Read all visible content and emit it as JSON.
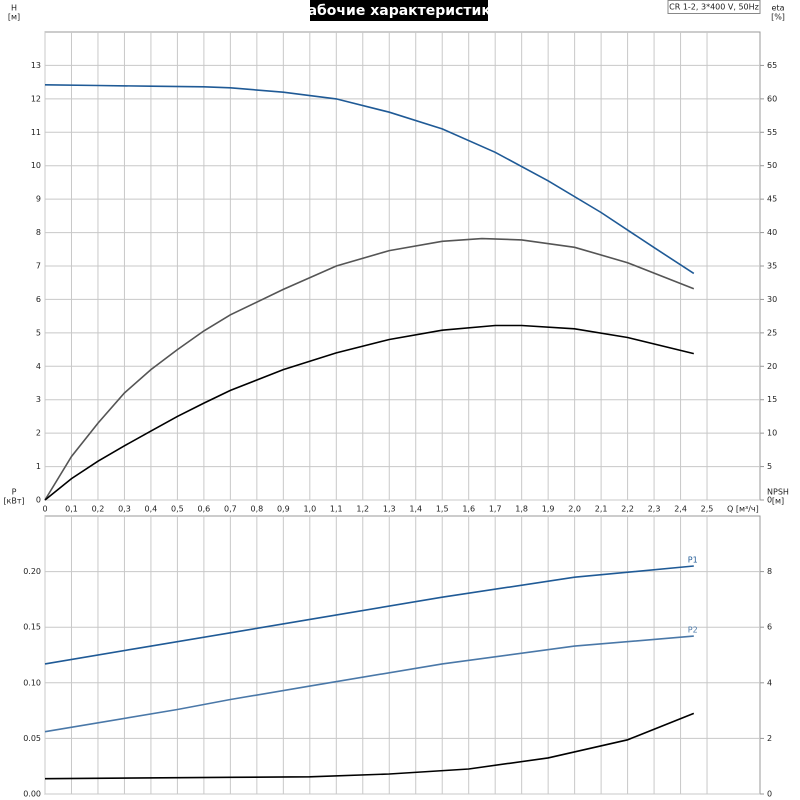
{
  "chart_data": [
    {
      "type": "line",
      "title": "Рабочие характеристики",
      "subtitle": "CR 1-2, 3*400 V, 50Hz",
      "ylabel": "H",
      "yunit": "[м]",
      "y2label": "eta",
      "y2unit": "[%]",
      "xlabel": "Q [м³/ч]",
      "xlim": [
        0,
        2.7
      ],
      "xticks": [
        0,
        {
          "value": 0.1,
          "label": "0,1"
        },
        {
          "value": 0.2,
          "label": "0,2"
        },
        {
          "value": 0.3,
          "label": "0,3"
        },
        {
          "value": 0.4,
          "label": "0,4"
        },
        {
          "value": 0.5,
          "label": "0,5"
        },
        {
          "value": 0.6,
          "label": "0,6"
        },
        {
          "value": 0.7,
          "label": "0,7"
        },
        {
          "value": 0.8,
          "label": "0,8"
        },
        {
          "value": 0.9,
          "label": "0,9"
        },
        {
          "value": 1.0,
          "label": "1,0"
        },
        {
          "value": 1.1,
          "label": "1,1"
        },
        {
          "value": 1.2,
          "label": "1,2"
        },
        {
          "value": 1.3,
          "label": "1,3"
        },
        {
          "value": 1.4,
          "label": "1,4"
        },
        {
          "value": 1.5,
          "label": "1,5"
        },
        {
          "value": 1.6,
          "label": "1,6"
        },
        {
          "value": 1.7,
          "label": "1,7"
        },
        {
          "value": 1.8,
          "label": "1,8"
        },
        {
          "value": 1.9,
          "label": "1,9"
        },
        {
          "value": 2.0,
          "label": "2,0"
        },
        {
          "value": 2.1,
          "label": "2,1"
        },
        {
          "value": 2.2,
          "label": "2,2"
        },
        {
          "value": 2.3,
          "label": "2,3"
        },
        {
          "value": 2.4,
          "label": "2,4"
        },
        {
          "value": 2.5,
          "label": "2,5"
        }
      ],
      "ylim": [
        0,
        14
      ],
      "yticks": [
        0,
        1,
        2,
        3,
        4,
        5,
        6,
        7,
        8,
        9,
        10,
        11,
        12,
        13
      ],
      "y2lim": [
        0,
        70
      ],
      "y2ticks": [
        0,
        5,
        10,
        15,
        20,
        25,
        30,
        35,
        40,
        45,
        50,
        55,
        60,
        65
      ],
      "grid": true,
      "series": [
        {
          "color": "#1f5a96",
          "x": [
            0,
            0.2,
            0.4,
            0.6,
            0.7,
            0.9,
            1.1,
            1.3,
            1.5,
            1.7,
            1.9,
            2.1,
            2.3,
            2.45
          ],
          "values": [
            12.42,
            12.4,
            12.38,
            12.36,
            12.33,
            12.2,
            12.0,
            11.6,
            11.1,
            10.4,
            9.55,
            8.6,
            7.55,
            6.78
          ]
        },
        {
          "color": "#555555",
          "axis": "y2",
          "x": [
            0,
            0.1,
            0.2,
            0.3,
            0.4,
            0.5,
            0.6,
            0.7,
            0.9,
            1.1,
            1.3,
            1.5,
            1.65,
            1.8,
            2.0,
            2.2,
            2.45
          ],
          "values": [
            0,
            6.5,
            11.5,
            16,
            19.5,
            22.5,
            25.3,
            27.7,
            31.5,
            35,
            37.3,
            38.7,
            39.1,
            38.9,
            37.8,
            35.5,
            31.6
          ]
        },
        {
          "color": "#000000",
          "axis": "y2",
          "x": [
            0,
            0.1,
            0.2,
            0.3,
            0.4,
            0.5,
            0.6,
            0.7,
            0.9,
            1.1,
            1.3,
            1.5,
            1.7,
            1.8,
            2.0,
            2.2,
            2.45
          ],
          "values": [
            0,
            3.2,
            5.8,
            8.1,
            10.3,
            12.5,
            14.5,
            16.4,
            19.5,
            22,
            24,
            25.4,
            26.1,
            26.1,
            25.6,
            24.3,
            21.9
          ]
        }
      ]
    },
    {
      "type": "line",
      "ylabel": "P",
      "yunit": "[кВт]",
      "y2label": "NPSH",
      "y2unit": "[м]",
      "xlim": [
        0,
        2.7
      ],
      "xticks": [
        0,
        0.1,
        0.2,
        0.3,
        0.4,
        0.5,
        0.6,
        0.7,
        0.8,
        0.9,
        1.0,
        1.1,
        1.2,
        1.3,
        1.4,
        1.5,
        1.6,
        1.7,
        1.8,
        1.9,
        2.0,
        2.1,
        2.2,
        2.3,
        2.4,
        2.5
      ],
      "ylim": [
        0,
        0.25
      ],
      "yticks": [
        {
          "value": 0,
          "label": "0.00"
        },
        {
          "value": 0.05,
          "label": "0.05"
        },
        {
          "value": 0.1,
          "label": "0.10"
        },
        {
          "value": 0.15,
          "label": "0.15"
        },
        {
          "value": 0.2,
          "label": "0.20"
        }
      ],
      "y2lim": [
        0,
        10
      ],
      "y2ticks": [
        0,
        2,
        4,
        6,
        8
      ],
      "grid": true,
      "series": [
        {
          "name": "P1",
          "color": "#1f5a96",
          "x": [
            0,
            0.35,
            0.7,
            1.0,
            1.5,
            2.0,
            2.45
          ],
          "values": [
            0.117,
            0.131,
            0.145,
            0.157,
            0.177,
            0.195,
            0.205
          ]
        },
        {
          "name": "P2",
          "color": "#4a78a8",
          "x": [
            0,
            0.5,
            0.7,
            1.0,
            1.5,
            2.0,
            2.45
          ],
          "values": [
            0.056,
            0.076,
            0.085,
            0.097,
            0.117,
            0.133,
            0.142
          ]
        },
        {
          "color": "#000000",
          "axis": "y2",
          "x": [
            0,
            0.7,
            1.0,
            1.3,
            1.6,
            1.9,
            2.2,
            2.45
          ],
          "values": [
            0.55,
            0.6,
            0.62,
            0.72,
            0.9,
            1.3,
            1.95,
            2.9
          ]
        }
      ]
    }
  ]
}
